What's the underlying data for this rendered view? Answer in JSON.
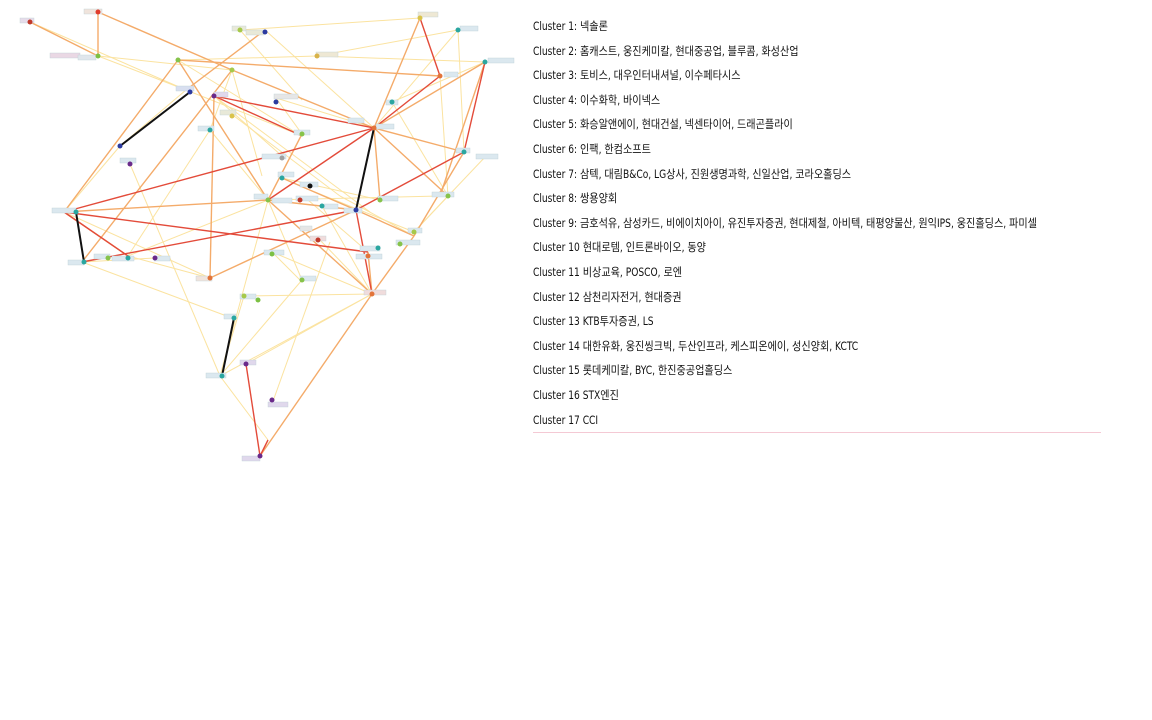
{
  "legend": [
    {
      "label": "Cluster 1:",
      "members": "넥솔론"
    },
    {
      "label": "Cluster 2:",
      "members": "홈캐스트, 웅진케미칼, 현대중공업, 블루콤, 화성산업"
    },
    {
      "label": "Cluster 3:",
      "members": "토비스, 대우인터내셔널, 이수페타시스"
    },
    {
      "label": "Cluster 4:",
      "members": "이수화학, 바이넥스"
    },
    {
      "label": "Cluster 5:",
      "members": "화승알앤에이, 현대건설, 넥센타이어, 드래곤플라이"
    },
    {
      "label": "Cluster 6:",
      "members": "인팩, 한컴소프트"
    },
    {
      "label": "Cluster 7:",
      "members": "삼텍, 대림B&Co, LG상사, 진원생명과학, 신일산업, 코라오홀딩스"
    },
    {
      "label": "Cluster 8:",
      "members": "쌍용양회"
    },
    {
      "label": "Cluster 9:",
      "members": "금호석유, 삼성카드, 비에이치아이, 유진투자증권, 현대제철, 아비텍, 태평양물산, 원익IPS, 웅진홀딩스, 파미셀"
    },
    {
      "label": "Cluster 10",
      "members": "현대로템, 인트론바이오, 동양"
    },
    {
      "label": "Cluster 11",
      "members": "비상교육, POSCO, 로엔"
    },
    {
      "label": "Cluster 12",
      "members": "삼천리자전거, 현대증권"
    },
    {
      "label": "Cluster 13",
      "members": "KTB투자증권, LS"
    },
    {
      "label": "Cluster 14",
      "members": "대한유화, 웅진씽크빅, 두산인프라, 케스피온에이, 성신양회, KCTC"
    },
    {
      "label": "Cluster 15",
      "members": "롯데케미칼, BYC, 한진중공업홀딩스"
    },
    {
      "label": "Cluster 16",
      "members": "STX엔진"
    },
    {
      "label": "Cluster 17",
      "members": "CCI"
    }
  ],
  "colors": {
    "edge_strong": "#e0452e",
    "edge_medium": "#f3a35a",
    "edge_weak": "#fbe6a6",
    "edge_black": "#111111",
    "divider": "#f4c9d4"
  }
}
